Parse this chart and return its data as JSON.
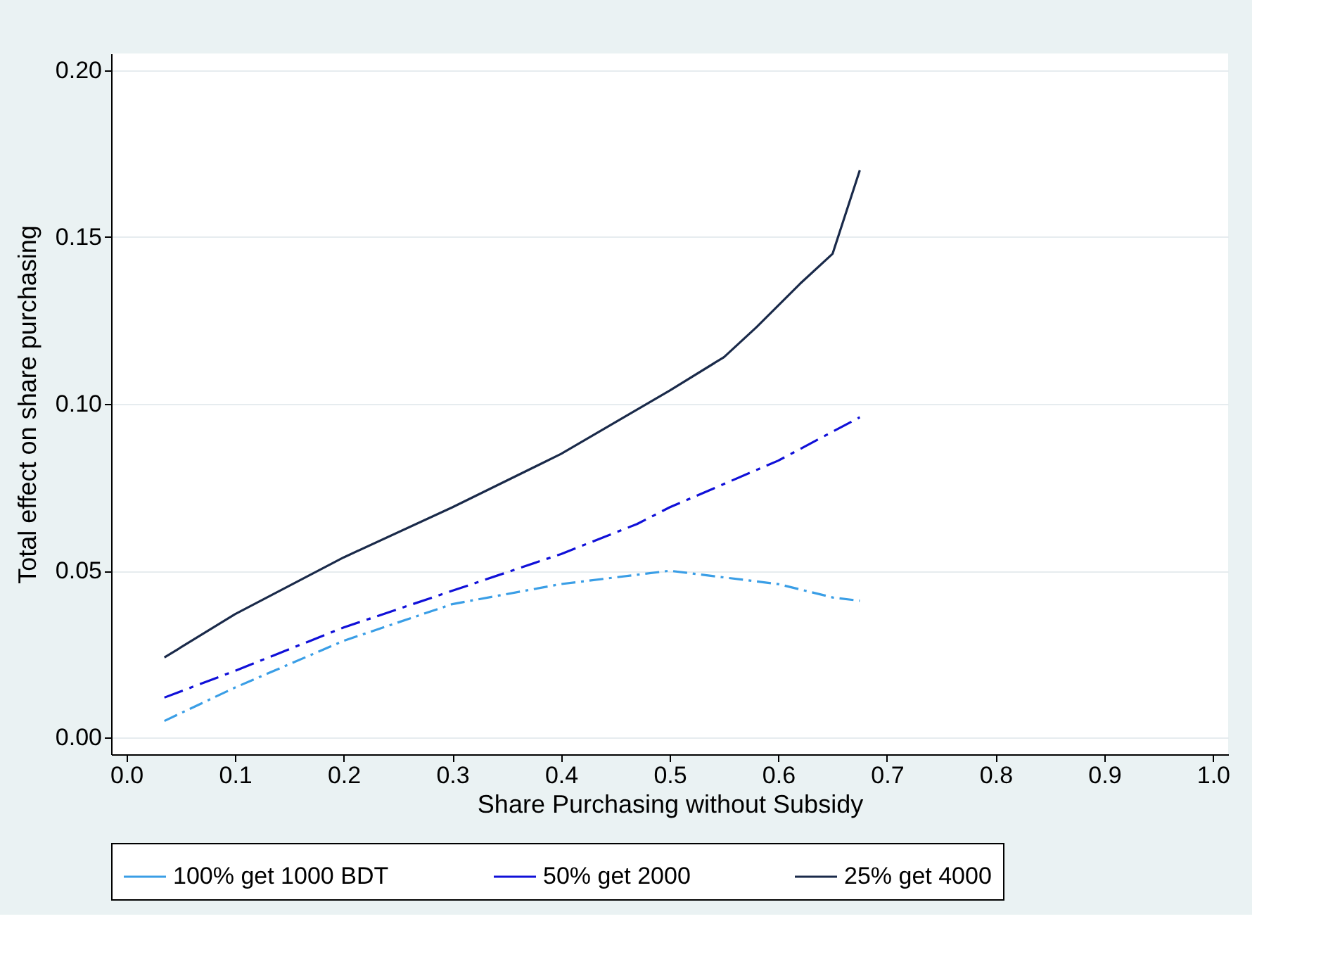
{
  "chart_data": {
    "type": "line",
    "xlabel": "Share Purchasing without Subsidy",
    "ylabel": "Total effect on share purchasing",
    "xlim": [
      -0.014,
      1.014
    ],
    "ylim": [
      -0.005,
      0.205
    ],
    "xticks": [
      {
        "value": 0,
        "label": "0.0"
      },
      0.1,
      0.2,
      0.3,
      0.4,
      0.5,
      0.6,
      0.7,
      0.8,
      0.9,
      {
        "value": 1,
        "label": "1.0"
      }
    ],
    "yticks": [
      {
        "value": 0,
        "label": "0.00"
      },
      0.05,
      {
        "value": 0.1,
        "label": "0.10"
      },
      0.15,
      {
        "value": 0.2,
        "label": "0.20"
      }
    ],
    "grid": "y",
    "legend": "bottom",
    "marker": "none",
    "series": [
      {
        "name": "100% get 1000 BDT",
        "color": "#3a9ee6",
        "line_style": "dotted",
        "x": [
          0.035,
          0.1,
          0.2,
          0.3,
          0.4,
          0.5,
          0.6,
          0.65,
          0.675
        ],
        "values": [
          0.005,
          0.015,
          0.029,
          0.04,
          0.046,
          0.05,
          0.046,
          0.042,
          0.041
        ]
      },
      {
        "name": "50% get 2000",
        "color": "#1010d8",
        "line_style": "dashed",
        "x": [
          0.035,
          0.1,
          0.2,
          0.3,
          0.4,
          0.47,
          0.5,
          0.6,
          0.675
        ],
        "values": [
          0.012,
          0.02,
          0.033,
          0.044,
          0.055,
          0.064,
          0.069,
          0.083,
          0.096
        ]
      },
      {
        "name": "25% get 4000",
        "color": "#1a2a4a",
        "line_style": "solid",
        "x": [
          0.035,
          0.1,
          0.2,
          0.3,
          0.4,
          0.5,
          0.55,
          0.58,
          0.62,
          0.65,
          0.675
        ],
        "values": [
          0.024,
          0.037,
          0.054,
          0.069,
          0.085,
          0.104,
          0.114,
          0.123,
          0.136,
          0.145,
          0.17
        ]
      }
    ]
  }
}
